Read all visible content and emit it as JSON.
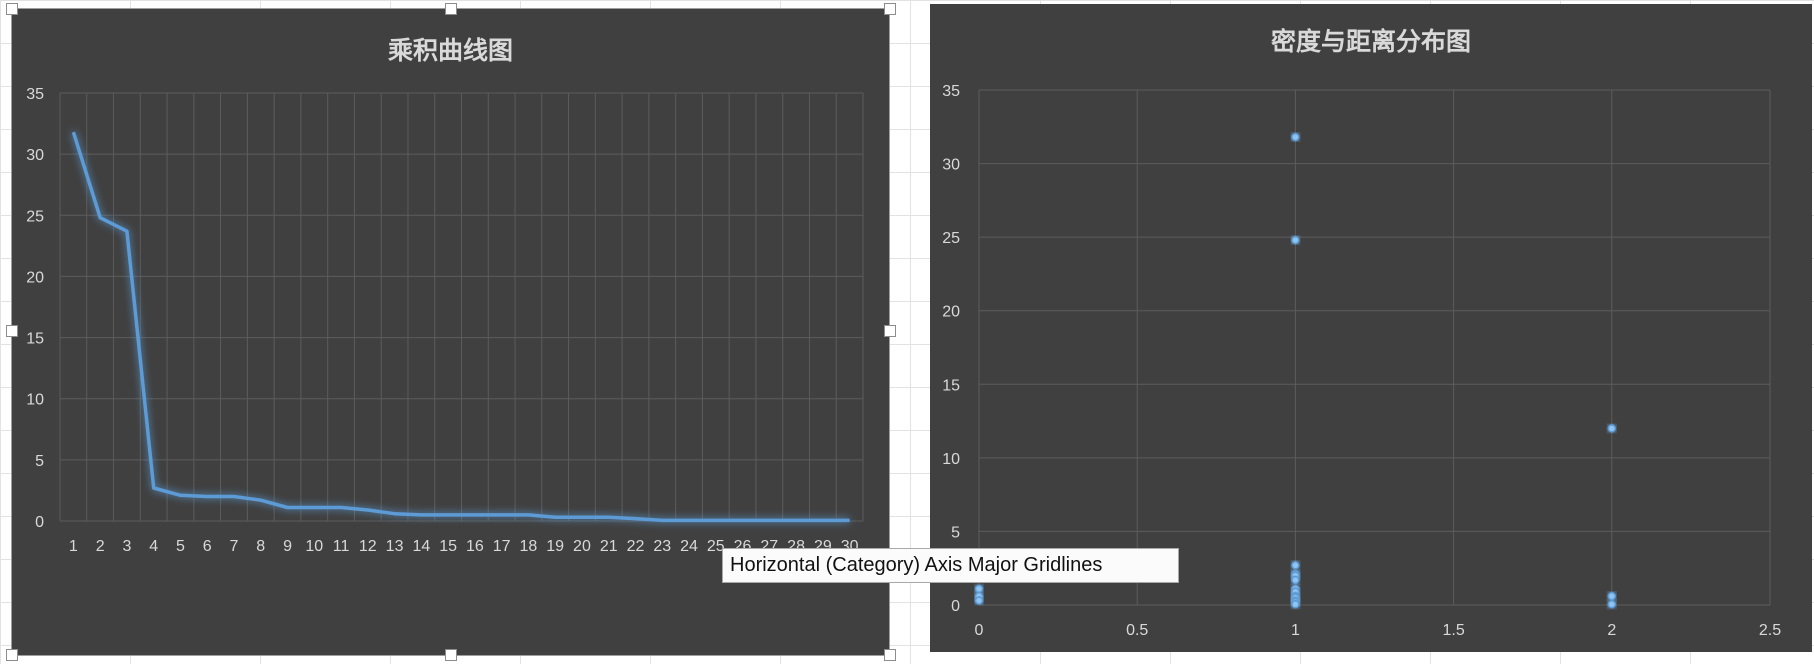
{
  "colors": {
    "background": "#404040",
    "gridline": "#5c5c5c",
    "series": "#5b9bd5",
    "text": "#d9d9d9"
  },
  "tooltip": {
    "text": "Horizontal (Category) Axis Major Gridlines"
  },
  "chart_data": [
    {
      "type": "line",
      "title": "乘积曲线图",
      "xlabel": "",
      "ylabel": "",
      "categories": [
        1,
        2,
        3,
        4,
        5,
        6,
        7,
        8,
        9,
        10,
        11,
        12,
        13,
        14,
        15,
        16,
        17,
        18,
        19,
        20,
        21,
        22,
        23,
        24,
        25,
        26,
        27,
        28,
        29,
        30
      ],
      "values": [
        31.8,
        24.8,
        23.7,
        2.7,
        2.1,
        2.0,
        2.0,
        1.7,
        1.1,
        1.1,
        1.1,
        0.9,
        0.6,
        0.5,
        0.5,
        0.5,
        0.5,
        0.5,
        0.3,
        0.3,
        0.3,
        0.2,
        0.05,
        0.05,
        0.05,
        0.05,
        0.05,
        0.05,
        0.05,
        0.05
      ],
      "ylim": [
        0,
        35
      ],
      "yticks": [
        0,
        5,
        10,
        15,
        20,
        25,
        30,
        35
      ],
      "grid": true
    },
    {
      "type": "scatter",
      "title": "密度与距离分布图",
      "xlabel": "",
      "ylabel": "",
      "points": [
        {
          "x": 1,
          "y": 31.8
        },
        {
          "x": 1,
          "y": 24.8
        },
        {
          "x": 2,
          "y": 12.0
        },
        {
          "x": 1,
          "y": 2.7
        },
        {
          "x": 1,
          "y": 2.1
        },
        {
          "x": 1,
          "y": 2.0
        },
        {
          "x": 1,
          "y": 1.7
        },
        {
          "x": 1,
          "y": 1.1
        },
        {
          "x": 1,
          "y": 0.9
        },
        {
          "x": 1,
          "y": 0.6
        },
        {
          "x": 1,
          "y": 0.5
        },
        {
          "x": 1,
          "y": 0.3
        },
        {
          "x": 1,
          "y": 0.2
        },
        {
          "x": 1,
          "y": 0.05
        },
        {
          "x": 2,
          "y": 0.6
        },
        {
          "x": 2,
          "y": 0.05
        },
        {
          "x": 0,
          "y": 1.1
        },
        {
          "x": 0,
          "y": 0.6
        },
        {
          "x": 0,
          "y": 0.3
        }
      ],
      "xlim": [
        0,
        2.5
      ],
      "xticks": [
        "0",
        "0.5",
        "1",
        "1.5",
        "2",
        "2.5"
      ],
      "ylim": [
        0,
        35
      ],
      "yticks": [
        0,
        5,
        10,
        15,
        20,
        25,
        30,
        35
      ],
      "grid": true
    }
  ]
}
